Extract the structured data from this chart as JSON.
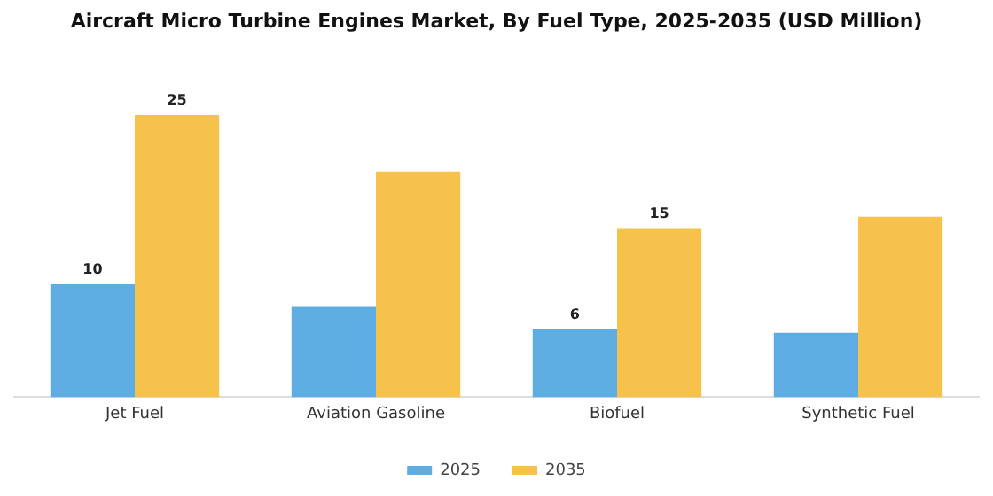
{
  "chart_data": {
    "type": "bar",
    "title": "Aircraft Micro Turbine Engines Market, By Fuel Type, 2025-2035 (USD Million)",
    "categories": [
      "Jet Fuel",
      "Aviation Gasoline",
      "Biofuel",
      "Synthetic Fuel"
    ],
    "series": [
      {
        "name": "2025",
        "color": "#5dade2",
        "values": [
          10,
          8,
          6,
          5.7
        ],
        "value_labels": [
          "10",
          null,
          "6",
          null
        ]
      },
      {
        "name": "2035",
        "color": "#f7c24c",
        "values": [
          25,
          20,
          15,
          16
        ],
        "value_labels": [
          "25",
          null,
          "15",
          null
        ]
      }
    ],
    "legend": "bottom",
    "grid": false
  }
}
